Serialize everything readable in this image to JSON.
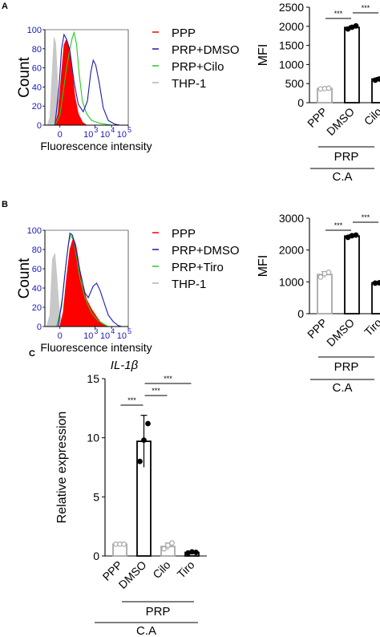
{
  "panel_labels": [
    "A",
    "B",
    "C"
  ],
  "chart_data": [
    {
      "id": "A_hist",
      "type": "area",
      "xlabel": "Fluorescence intensity",
      "ylabel": "Count",
      "y_ticks": [
        "0",
        "20",
        "40",
        "60",
        "80",
        "100"
      ],
      "x_ticks": [
        {
          "base": "0",
          "exp": ""
        },
        {
          "base": "10",
          "exp": "3"
        },
        {
          "base": "10",
          "exp": "4"
        },
        {
          "base": "10",
          "exp": "5"
        }
      ],
      "xlim": [
        0,
        5
      ],
      "ylim": [
        0,
        100
      ],
      "legend": [
        {
          "label": "PPP",
          "color": "#ff0000"
        },
        {
          "label": "PRP+DMSO",
          "color": "#1a1ab8"
        },
        {
          "label": "PRP+Cilo",
          "color": "#22cc22"
        },
        {
          "label": "THP-1",
          "color": "#b3b3b3"
        }
      ],
      "series": [
        {
          "name": "THP-1",
          "color": "#c8c8c8",
          "fill": true,
          "points": [
            [
              0.15,
              0
            ],
            [
              0.3,
              8
            ],
            [
              0.45,
              60
            ],
            [
              0.55,
              92
            ],
            [
              0.65,
              86
            ],
            [
              0.75,
              50
            ],
            [
              0.85,
              15
            ],
            [
              1.0,
              2
            ],
            [
              1.15,
              0
            ]
          ]
        },
        {
          "name": "PPP",
          "color": "#ff0000",
          "fill": true,
          "points": [
            [
              0.6,
              0
            ],
            [
              0.8,
              12
            ],
            [
              1.0,
              55
            ],
            [
              1.15,
              84
            ],
            [
              1.3,
              90
            ],
            [
              1.45,
              82
            ],
            [
              1.6,
              60
            ],
            [
              1.8,
              30
            ],
            [
              2.0,
              12
            ],
            [
              2.25,
              3
            ],
            [
              2.5,
              0
            ]
          ]
        },
        {
          "name": "PRP+Cilo",
          "color": "#22cc22",
          "fill": false,
          "points": [
            [
              0.6,
              0
            ],
            [
              0.9,
              10
            ],
            [
              1.1,
              35
            ],
            [
              1.3,
              60
            ],
            [
              1.5,
              80
            ],
            [
              1.65,
              92
            ],
            [
              1.75,
              97
            ],
            [
              1.9,
              85
            ],
            [
              2.05,
              55
            ],
            [
              2.25,
              25
            ],
            [
              2.5,
              12
            ],
            [
              2.8,
              5
            ],
            [
              3.3,
              2
            ],
            [
              4.0,
              0
            ]
          ]
        },
        {
          "name": "PRP+DMSO",
          "color": "#1a1ab8",
          "fill": false,
          "points": [
            [
              0.6,
              0
            ],
            [
              0.85,
              40
            ],
            [
              1.0,
              80
            ],
            [
              1.15,
              95
            ],
            [
              1.3,
              90
            ],
            [
              1.5,
              78
            ],
            [
              1.75,
              45
            ],
            [
              2.0,
              22
            ],
            [
              2.3,
              14
            ],
            [
              2.55,
              25
            ],
            [
              2.75,
              55
            ],
            [
              2.9,
              68
            ],
            [
              3.05,
              63
            ],
            [
              3.25,
              45
            ],
            [
              3.5,
              18
            ],
            [
              3.8,
              5
            ],
            [
              4.2,
              1
            ],
            [
              4.5,
              0
            ]
          ]
        }
      ]
    },
    {
      "id": "A_bar",
      "type": "bar",
      "ylabel": "MFI",
      "ylim": [
        0,
        2500
      ],
      "y_ticks": [
        "0",
        "500",
        "1000",
        "1500",
        "2000",
        "2500"
      ],
      "categories": [
        "PPP",
        "DMSO",
        "Cilo"
      ],
      "values": [
        370,
        1970,
        620
      ],
      "errors": [
        15,
        40,
        40
      ],
      "points": [
        [
          360,
          370,
          380
        ],
        [
          1930,
          1975,
          2010
        ],
        [
          590,
          620,
          650
        ]
      ],
      "colors": [
        "#a8a8a8",
        "#000000",
        "#000000"
      ],
      "sig": [
        {
          "from": 0,
          "to": 1,
          "label": "***"
        },
        {
          "from": 1,
          "to": 2,
          "label": "***"
        }
      ],
      "group_label": "PRP",
      "outer_label": "C.A"
    },
    {
      "id": "B_hist",
      "type": "area",
      "xlabel": "Fluorescence intensity",
      "ylabel": "Count",
      "y_ticks": [
        "0",
        "20",
        "40",
        "60",
        "80",
        "100"
      ],
      "x_ticks": [
        {
          "base": "0",
          "exp": ""
        },
        {
          "base": "10",
          "exp": "3"
        },
        {
          "base": "10",
          "exp": "4"
        },
        {
          "base": "10",
          "exp": "5"
        }
      ],
      "xlim": [
        0,
        5
      ],
      "ylim": [
        0,
        100
      ],
      "legend": [
        {
          "label": "PPP",
          "color": "#ff0000"
        },
        {
          "label": "PRP+DMSO",
          "color": "#1a1ab8"
        },
        {
          "label": "PRP+Tiro",
          "color": "#22cc22"
        },
        {
          "label": "THP-1",
          "color": "#b3b3b3"
        }
      ],
      "series": [
        {
          "name": "THP-1",
          "color": "#c8c8c8",
          "fill": true,
          "points": [
            [
              0.1,
              0
            ],
            [
              0.3,
              12
            ],
            [
              0.45,
              70
            ],
            [
              0.6,
              76
            ],
            [
              0.7,
              55
            ],
            [
              0.85,
              20
            ],
            [
              1.0,
              3
            ],
            [
              1.2,
              0
            ]
          ]
        },
        {
          "name": "PPP",
          "color": "#ff0000",
          "fill": true,
          "points": [
            [
              0.9,
              0
            ],
            [
              1.1,
              15
            ],
            [
              1.3,
              50
            ],
            [
              1.5,
              80
            ],
            [
              1.7,
              92
            ],
            [
              1.85,
              85
            ],
            [
              2.0,
              70
            ],
            [
              2.2,
              45
            ],
            [
              2.5,
              28
            ],
            [
              2.8,
              18
            ],
            [
              3.1,
              10
            ],
            [
              3.4,
              3
            ],
            [
              3.7,
              0
            ]
          ]
        },
        {
          "name": "PRP+Tiro",
          "color": "#22cc22",
          "fill": false,
          "points": [
            [
              0.7,
              0
            ],
            [
              1.0,
              20
            ],
            [
              1.2,
              55
            ],
            [
              1.4,
              85
            ],
            [
              1.55,
              95
            ],
            [
              1.7,
              90
            ],
            [
              1.9,
              72
            ],
            [
              2.1,
              50
            ],
            [
              2.4,
              30
            ],
            [
              2.8,
              14
            ],
            [
              3.2,
              6
            ],
            [
              3.8,
              0
            ]
          ]
        },
        {
          "name": "PRP+DMSO",
          "color": "#1a1ab8",
          "fill": false,
          "points": [
            [
              0.8,
              0
            ],
            [
              1.05,
              30
            ],
            [
              1.3,
              70
            ],
            [
              1.5,
              97
            ],
            [
              1.65,
              95
            ],
            [
              1.85,
              80
            ],
            [
              2.1,
              58
            ],
            [
              2.4,
              35
            ],
            [
              2.6,
              30
            ],
            [
              2.9,
              42
            ],
            [
              3.1,
              45
            ],
            [
              3.3,
              38
            ],
            [
              3.55,
              25
            ],
            [
              3.8,
              12
            ],
            [
              4.1,
              5
            ],
            [
              4.4,
              1
            ],
            [
              4.6,
              0
            ]
          ]
        }
      ]
    },
    {
      "id": "B_bar",
      "type": "bar",
      "ylabel": "MFI",
      "ylim": [
        0,
        3000
      ],
      "y_ticks": [
        "0",
        "1000",
        "2000",
        "3000"
      ],
      "categories": [
        "PPP",
        "DMSO",
        "Tiro"
      ],
      "values": [
        1230,
        2440,
        970
      ],
      "errors": [
        90,
        40,
        20
      ],
      "points": [
        [
          1150,
          1260,
          1300
        ],
        [
          2400,
          2450,
          2470
        ],
        [
          960,
          970,
          980
        ]
      ],
      "colors": [
        "#a8a8a8",
        "#000000",
        "#000000"
      ],
      "sig": [
        {
          "from": 0,
          "to": 1,
          "label": "***"
        },
        {
          "from": 1,
          "to": 2,
          "label": "***"
        }
      ],
      "group_label": "PRP",
      "outer_label": "C.A"
    },
    {
      "id": "C_bar",
      "type": "bar",
      "title": "IL-1β",
      "ylabel": "Relative expression",
      "ylim": [
        0,
        15
      ],
      "y_ticks": [
        "0",
        "5",
        "10",
        "15"
      ],
      "categories": [
        "PPP",
        "DMSO",
        "Cilo",
        "Tiro"
      ],
      "values": [
        1.0,
        9.7,
        0.8,
        0.3
      ],
      "errors": [
        0.1,
        2.2,
        0.3,
        0.1
      ],
      "points": [
        [
          1.0,
          1.0,
          1.0
        ],
        [
          8.0,
          9.8,
          11.2
        ],
        [
          0.6,
          0.9,
          1.1
        ],
        [
          0.25,
          0.35,
          0.3
        ]
      ],
      "colors": [
        "#a8a8a8",
        "#000000",
        "#a8a8a8",
        "#000000"
      ],
      "sig": [
        {
          "from": 0,
          "to": 1,
          "label": "***"
        },
        {
          "from": 1,
          "to": 2,
          "label": "***"
        },
        {
          "from": 1,
          "to": 3,
          "label": "***"
        }
      ],
      "group_label": "PRP",
      "outer_label": "C.A"
    }
  ]
}
